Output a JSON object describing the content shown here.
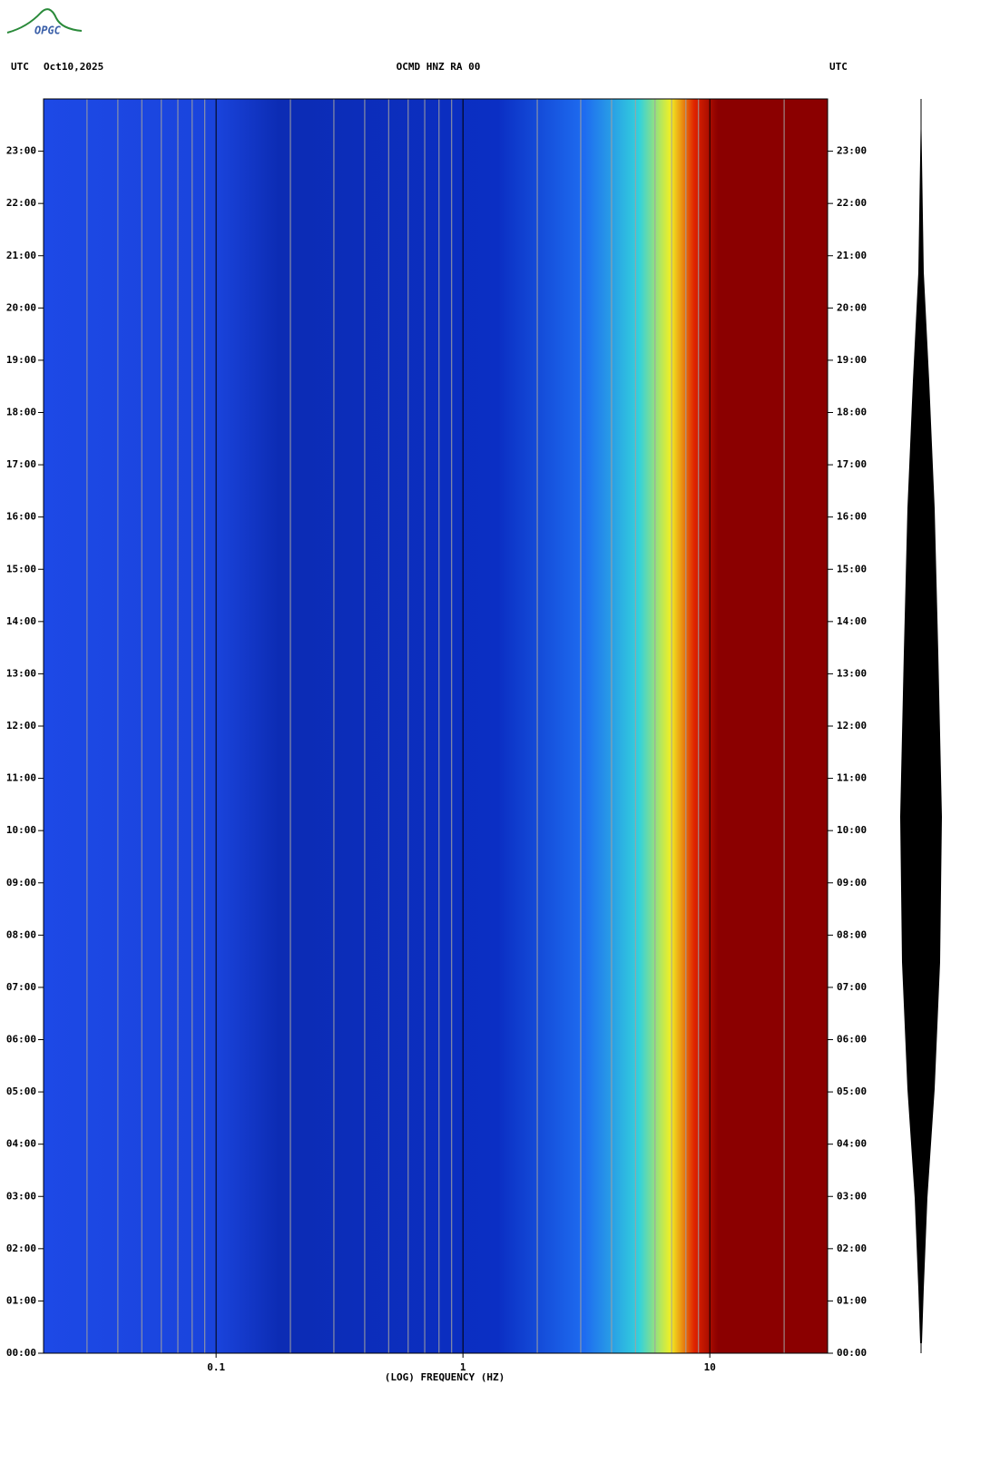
{
  "header": {
    "logo": "OPGC",
    "tz_left": "UTC",
    "date": "Oct10,2025",
    "station": "OCMD HNZ RA 00",
    "tz_right": "UTC"
  },
  "chart_data": {
    "type": "spectrogram",
    "xlabel": "(LOG) FREQUENCY (HZ)",
    "xscale": "log",
    "xlim": [
      0.02,
      30
    ],
    "xticks": [
      {
        "value": 0.1,
        "label": "0.1"
      },
      1,
      10
    ],
    "xgrid": [
      0.03,
      0.04,
      0.05,
      0.06,
      0.07,
      0.08,
      0.09,
      0.2,
      0.3,
      0.4,
      0.5,
      0.6,
      0.7,
      0.8,
      0.9,
      2,
      3,
      4,
      5,
      6,
      7,
      8,
      9,
      20
    ],
    "ylim": [
      0,
      24
    ],
    "yticks": [
      {
        "value": 0,
        "label": "00:00"
      },
      {
        "value": 1,
        "label": "01:00"
      },
      {
        "value": 2,
        "label": "02:00"
      },
      {
        "value": 3,
        "label": "03:00"
      },
      {
        "value": 4,
        "label": "04:00"
      },
      {
        "value": 5,
        "label": "05:00"
      },
      {
        "value": 6,
        "label": "06:00"
      },
      {
        "value": 7,
        "label": "07:00"
      },
      {
        "value": 8,
        "label": "08:00"
      },
      {
        "value": 9,
        "label": "09:00"
      },
      {
        "value": 10,
        "label": "10:00"
      },
      {
        "value": 11,
        "label": "11:00"
      },
      {
        "value": 12,
        "label": "12:00"
      },
      {
        "value": 13,
        "label": "13:00"
      },
      {
        "value": 14,
        "label": "14:00"
      },
      {
        "value": 15,
        "label": "15:00"
      },
      {
        "value": 16,
        "label": "16:00"
      },
      {
        "value": 17,
        "label": "17:00"
      },
      {
        "value": 18,
        "label": "18:00"
      },
      {
        "value": 19,
        "label": "19:00"
      },
      {
        "value": 20,
        "label": "20:00"
      },
      {
        "value": 21,
        "label": "21:00"
      },
      {
        "value": 22,
        "label": "22:00"
      },
      {
        "value": 23,
        "label": "23:00"
      }
    ]
  }
}
